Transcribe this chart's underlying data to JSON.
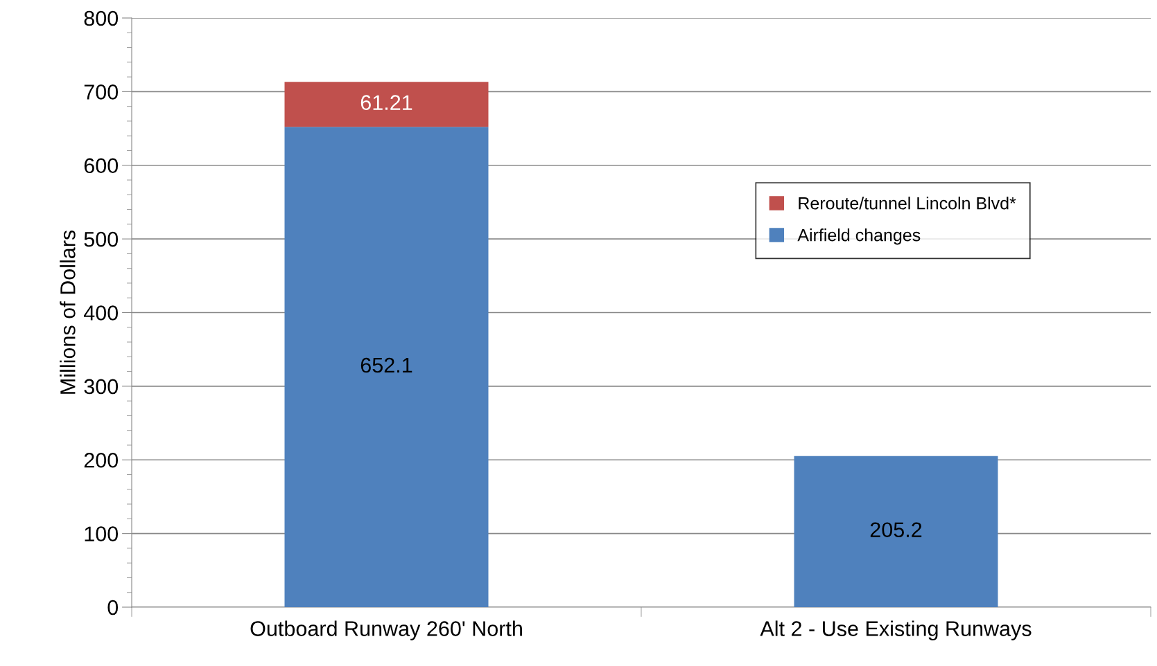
{
  "chart_data": {
    "type": "bar",
    "stacked": true,
    "ylabel": "Millions of Dollars",
    "categories": [
      "Outboard Runway 260' North",
      "Alt 2 - Use Existing Runways"
    ],
    "series": [
      {
        "name": "Airfield changes",
        "color": "#4f81bd",
        "values": [
          652.1,
          205.2
        ]
      },
      {
        "name": "Reroute/tunnel Lincoln Blvd*",
        "color": "#c0504d",
        "values": [
          61.21,
          null
        ]
      }
    ],
    "ylim": [
      0,
      800
    ],
    "yticks": [
      0,
      100,
      200,
      300,
      400,
      500,
      600,
      700,
      800
    ],
    "grid": "y",
    "legend": "top right",
    "data_labels": true
  }
}
